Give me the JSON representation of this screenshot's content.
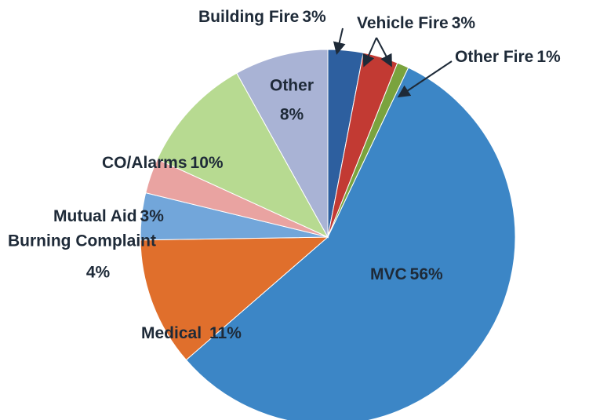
{
  "chart_data": {
    "type": "pie",
    "categories": [
      "Building Fire",
      "Vehicle Fire",
      "Other Fire",
      "MVC",
      "Medical",
      "Burning Complaint",
      "Mutual Aid",
      "CO/Alarms",
      "Other"
    ],
    "values": [
      3,
      3,
      1,
      56,
      11,
      4,
      3,
      10,
      8
    ],
    "value_labels": [
      "3%",
      "3%",
      "1%",
      "56%",
      "11%",
      "4%",
      "3%",
      "10%",
      "8%"
    ],
    "colors": [
      "#2d5f9f",
      "#c23a33",
      "#7aa33e",
      "#3c86c6",
      "#e06f2c",
      "#72a6da",
      "#e9a3a1",
      "#b7da91",
      "#a9b3d5"
    ]
  }
}
